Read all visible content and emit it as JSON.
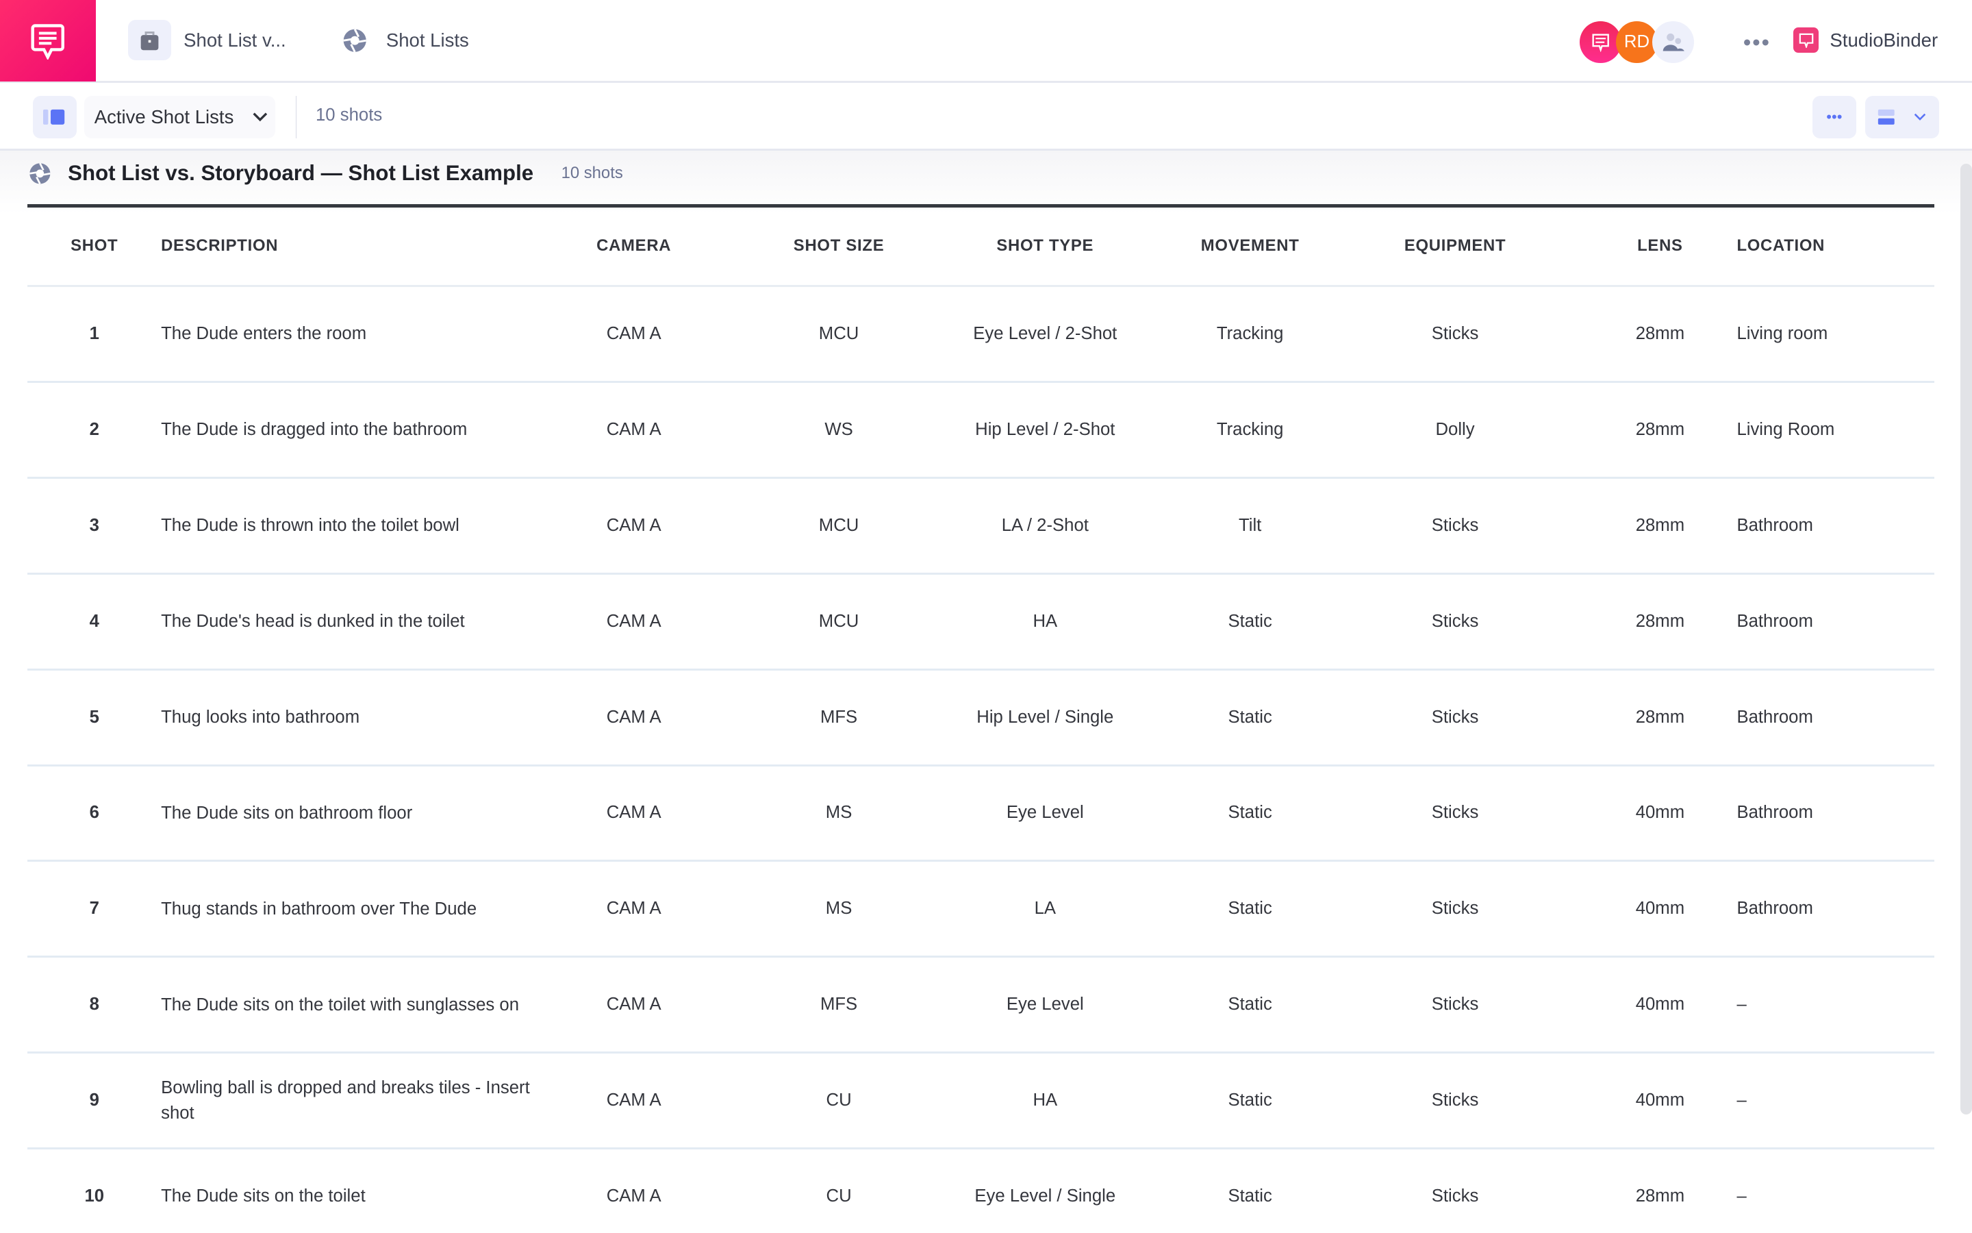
{
  "colors": {
    "brand": "#ef0a70",
    "accent": "#5b74f5",
    "avatar_orange": "#f7741b"
  },
  "topbar": {
    "logo_icon": "chat-bubble-icon",
    "breadcrumbs": [
      {
        "label": "Shot List v...",
        "icon": "briefcase-icon"
      },
      {
        "label": "Shot Lists",
        "icon": "aperture-icon"
      }
    ],
    "avatars": [
      {
        "icon": "chat-bubble-icon"
      },
      {
        "initials": "RD"
      },
      {
        "icon": "team-icon"
      }
    ],
    "more_label": "•••",
    "brand_name": "StudioBinder"
  },
  "subbar": {
    "dropdown_label": "Active Shot Lists",
    "count": "10 shots",
    "more_label": "•••"
  },
  "list": {
    "title": "Shot List vs. Storyboard — Shot List Example",
    "count": "10 shots"
  },
  "table": {
    "columns": [
      "SHOT",
      "DESCRIPTION",
      "CAMERA",
      "SHOT SIZE",
      "SHOT TYPE",
      "MOVEMENT",
      "EQUIPMENT",
      "LENS",
      "LOCATION"
    ],
    "rows": [
      [
        "1",
        "The Dude enters the room",
        "CAM A",
        "MCU",
        "Eye Level / 2-Shot",
        "Tracking",
        "Sticks",
        "28mm",
        "Living room"
      ],
      [
        "2",
        "The Dude is dragged into the bathroom",
        "CAM A",
        "WS",
        "Hip Level / 2-Shot",
        "Tracking",
        "Dolly",
        "28mm",
        "Living Room"
      ],
      [
        "3",
        "The Dude is thrown into the toilet bowl",
        "CAM A",
        "MCU",
        "LA / 2-Shot",
        "Tilt",
        "Sticks",
        "28mm",
        "Bathroom"
      ],
      [
        "4",
        "The Dude's head is dunked in the toilet",
        "CAM A",
        "MCU",
        "HA",
        "Static",
        "Sticks",
        "28mm",
        "Bathroom"
      ],
      [
        "5",
        "Thug looks into bathroom",
        "CAM A",
        "MFS",
        "Hip Level / Single",
        "Static",
        "Sticks",
        "28mm",
        "Bathroom"
      ],
      [
        "6",
        "The Dude sits on bathroom floor",
        "CAM A",
        "MS",
        "Eye Level",
        "Static",
        "Sticks",
        "40mm",
        "Bathroom"
      ],
      [
        "7",
        "Thug stands in bathroom over The Dude",
        "CAM A",
        "MS",
        "LA",
        "Static",
        "Sticks",
        "40mm",
        "Bathroom"
      ],
      [
        "8",
        "The Dude sits on the toilet with sunglasses on",
        "CAM A",
        "MFS",
        "Eye Level",
        "Static",
        "Sticks",
        "40mm",
        "–"
      ],
      [
        "9",
        "Bowling ball is dropped and breaks tiles - Insert shot",
        "CAM A",
        "CU",
        "HA",
        "Static",
        "Sticks",
        "40mm",
        "–"
      ],
      [
        "10",
        "The Dude sits on the toilet",
        "CAM A",
        "CU",
        "Eye Level / Single",
        "Static",
        "Sticks",
        "28mm",
        "–"
      ]
    ]
  }
}
